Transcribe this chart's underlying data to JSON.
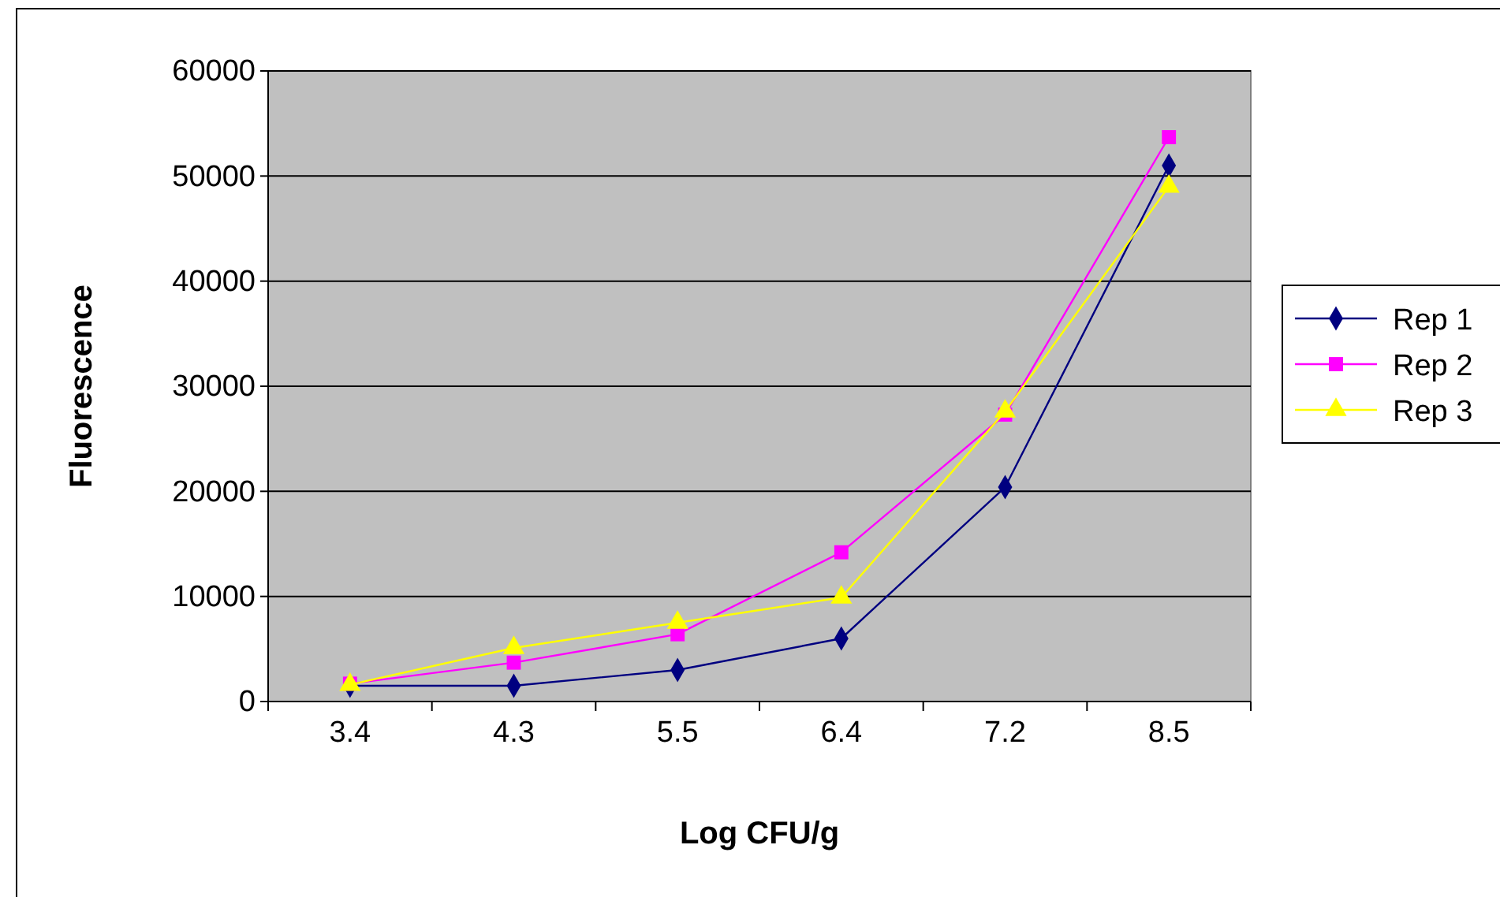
{
  "chart_data": {
    "type": "line",
    "xlabel": "Log CFU/g",
    "ylabel": "Fluorescence",
    "categories": [
      "3.4",
      "4.3",
      "5.5",
      "6.4",
      "7.2",
      "8.5"
    ],
    "series": [
      {
        "name": "Rep 1",
        "color": "#000080",
        "marker": "diamond",
        "values": [
          1500,
          1500,
          3000,
          6000,
          20400,
          51000
        ]
      },
      {
        "name": "Rep 2",
        "color": "#ff00ff",
        "marker": "square",
        "values": [
          1700,
          3700,
          6400,
          14200,
          27300,
          53700
        ]
      },
      {
        "name": "Rep 3",
        "color": "#ffff00",
        "marker": "triangle",
        "values": [
          1600,
          5100,
          7500,
          9900,
          27600,
          49000
        ]
      }
    ],
    "ylim": [
      0,
      60000
    ],
    "yticks": [
      0,
      10000,
      20000,
      30000,
      40000,
      50000,
      60000
    ],
    "grid": "y",
    "legend": "right",
    "line_style": "solid"
  }
}
